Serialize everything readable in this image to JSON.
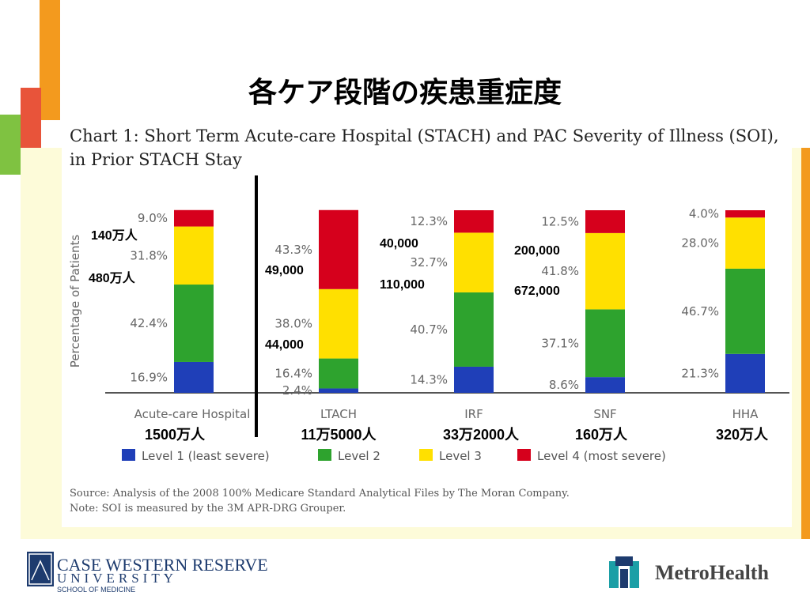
{
  "slide_title": "各ケア段階の疾患重症度",
  "chart_heading_line1": "Chart 1: Short Term Acute-care Hospital (STACH) and PAC Severity of Illness (SOI),",
  "chart_heading_line2": "in Prior STACH Stay",
  "source_note": "Source: Analysis of the 2008 100% Medicare Standard Analytical Files by The Moran Company.",
  "soi_note": "Note: SOI is measured by the 3M APR-DRG Grouper.",
  "logos": {
    "cwru_name": "CASE WESTERN RESERVE",
    "cwru_university": "UNIVERSITY",
    "cwru_school": "SCHOOL OF MEDICINE",
    "metro_name": "MetroHealth"
  },
  "colors": {
    "level1": "#1f3fb8",
    "level2": "#2ea32e",
    "level3": "#ffe000",
    "level4": "#d6001c",
    "accent_orange": "#f39a1e",
    "accent_green": "#7fc241",
    "accent_purple": "#6a2c8c",
    "accent_red": "#e8543a",
    "background_cream": "#fdfbd9"
  },
  "chart_data": {
    "type": "bar",
    "stacked": true,
    "ylabel": "Percentage of Patients",
    "ylim": [
      0,
      100
    ],
    "categories": [
      "Acute-care Hospital",
      "LTACH",
      "IRF",
      "SNF",
      "HHA"
    ],
    "series": [
      {
        "name": "Level 1 (least severe)",
        "values": [
          16.9,
          2.4,
          14.3,
          8.6,
          21.3
        ],
        "labels": [
          "16.9%",
          "2.4%",
          "14.3%",
          "8.6%",
          "21.3%"
        ]
      },
      {
        "name": "Level 2",
        "values": [
          42.4,
          16.4,
          40.7,
          37.1,
          46.7
        ],
        "labels": [
          "42.4%",
          "16.4%",
          "40.7%",
          "37.1%",
          "46.7%"
        ]
      },
      {
        "name": "Level 3",
        "values": [
          31.8,
          38.0,
          32.7,
          41.8,
          28.0
        ],
        "labels": [
          "31.8%",
          "38.0%",
          "32.7%",
          "41.8%",
          "28.0%"
        ]
      },
      {
        "name": "Level 4 (most severe)",
        "values": [
          9.0,
          43.3,
          12.3,
          12.5,
          4.0
        ],
        "labels": [
          "9.0%",
          "43.3%",
          "12.3%",
          "12.5%",
          "4.0%"
        ]
      }
    ],
    "totals": [
      "1500万人",
      "11万5000人",
      "33万2000人",
      "160万人",
      "320万人"
    ],
    "annotations": [
      {
        "category": 0,
        "level": 4,
        "text": "140万人"
      },
      {
        "category": 0,
        "level": 3,
        "text": "480万人"
      },
      {
        "category": 1,
        "level": 4,
        "text": "49,000"
      },
      {
        "category": 1,
        "level": 3,
        "text": "44,000"
      },
      {
        "category": 2,
        "level": 4,
        "text": "40,000"
      },
      {
        "category": 2,
        "level": 3,
        "text": "110,000"
      },
      {
        "category": 3,
        "level": 4,
        "text": "200,000"
      },
      {
        "category": 3,
        "level": 3,
        "text": "672,000"
      }
    ],
    "legend_position": "bottom",
    "grid": false
  }
}
